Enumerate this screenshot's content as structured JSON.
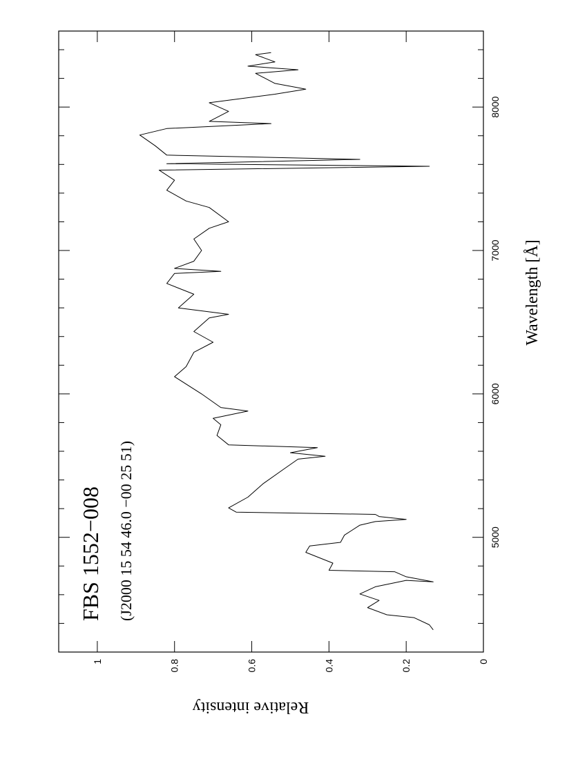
{
  "chart_data": {
    "type": "line",
    "title": "FBS 1552−008",
    "subtitle": "(J2000 15 54 46.0 −00 25 51)",
    "x_label": "Wavelength [Å]",
    "y_label": "Relative intensity",
    "x": [
      4355,
      4390,
      4440,
      4460,
      4510,
      4560,
      4605,
      4655,
      4700,
      4690,
      4725,
      4760,
      4770,
      4820,
      4895,
      4940,
      4965,
      5015,
      5085,
      5110,
      5125,
      5145,
      5160,
      5175,
      5205,
      5280,
      5375,
      5470,
      5545,
      5565,
      5590,
      5625,
      5645,
      5710,
      5785,
      5830,
      5880,
      5905,
      6000,
      6120,
      6190,
      6290,
      6360,
      6435,
      6530,
      6555,
      6600,
      6695,
      6770,
      6840,
      6855,
      6875,
      6925,
      7000,
      7080,
      7155,
      7200,
      7300,
      7345,
      7420,
      7490,
      7560,
      7587,
      7605,
      7635,
      7665,
      7730,
      7805,
      7850,
      7885,
      7900,
      7970,
      8030,
      8090,
      8125,
      8165,
      8235,
      8260,
      8285,
      8315,
      8365,
      8380
    ],
    "values": [
      0.13,
      0.14,
      0.18,
      0.25,
      0.3,
      0.27,
      0.32,
      0.28,
      0.2,
      0.13,
      0.2,
      0.23,
      0.4,
      0.39,
      0.46,
      0.45,
      0.37,
      0.36,
      0.32,
      0.28,
      0.2,
      0.27,
      0.28,
      0.64,
      0.66,
      0.61,
      0.57,
      0.52,
      0.48,
      0.41,
      0.5,
      0.43,
      0.66,
      0.69,
      0.68,
      0.7,
      0.61,
      0.68,
      0.73,
      0.8,
      0.77,
      0.75,
      0.7,
      0.75,
      0.71,
      0.66,
      0.79,
      0.75,
      0.82,
      0.8,
      0.68,
      0.8,
      0.75,
      0.73,
      0.75,
      0.71,
      0.66,
      0.71,
      0.77,
      0.82,
      0.8,
      0.84,
      0.14,
      0.82,
      0.32,
      0.82,
      0.85,
      0.89,
      0.82,
      0.55,
      0.71,
      0.66,
      0.71,
      0.54,
      0.46,
      0.54,
      0.59,
      0.48,
      0.61,
      0.54,
      0.59,
      0.55
    ],
    "color": "#000000",
    "xlim": [
      4200,
      8530
    ],
    "xticks": [
      5000,
      6000,
      7000,
      8000
    ],
    "xminorticks": [
      4200,
      4400,
      4600,
      4800,
      5200,
      5400,
      5600,
      5800,
      6200,
      6400,
      6600,
      6800,
      7200,
      7400,
      7600,
      7800,
      8200,
      8400
    ],
    "ylim": [
      0,
      1.1
    ],
    "yticks": [
      0,
      0.2,
      0.4,
      0.6,
      0.8,
      1
    ],
    "rotation": -90
  }
}
